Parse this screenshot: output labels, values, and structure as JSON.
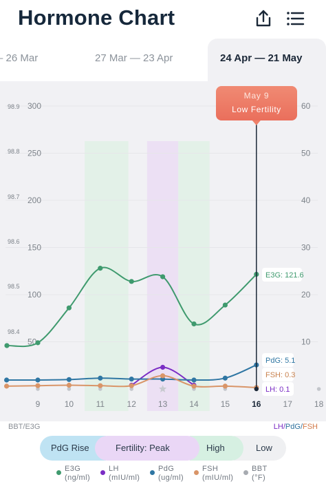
{
  "header": {
    "title": "Hormone Chart",
    "share_icon": "share-icon",
    "menu_icon": "list-menu-icon"
  },
  "tabs": [
    {
      "label": "– 26 Mar",
      "active": false
    },
    {
      "label": "27 Mar — 23 Apr",
      "active": false
    },
    {
      "label": "24 Apr — 21 May",
      "active": true
    }
  ],
  "tooltip": {
    "date": "May 9",
    "status": "Low Fertility"
  },
  "axis_captions": {
    "left": "BBT/E3G",
    "right_1": "LH",
    "sep_1": "/",
    "right_2": "PdG",
    "sep_2": "/",
    "right_3": "FSH"
  },
  "phases": [
    "PdG Rise",
    "Fertility: Peak",
    "High",
    "Low"
  ],
  "legend": [
    {
      "name": "E3G",
      "unit": "(ng/ml)",
      "color": "#3f9a6e"
    },
    {
      "name": "LH",
      "unit": "(mIU/ml)",
      "color": "#7a2cc4"
    },
    {
      "name": "PdG",
      "unit": "(ug/ml)",
      "color": "#2f76a3"
    },
    {
      "name": "FSH",
      "unit": "(mIU/ml)",
      "color": "#d99568"
    },
    {
      "name": "BBT",
      "unit": "(°F)",
      "color": "#a7abb1"
    }
  ],
  "chart_data": {
    "type": "line",
    "x": [
      8,
      9,
      10,
      11,
      12,
      13,
      14,
      15,
      16
    ],
    "x_ticks": [
      "9",
      "10",
      "11",
      "12",
      "13",
      "14",
      "15",
      "16",
      "17",
      "18"
    ],
    "highlight_x": "16",
    "y_left_bbt_ticks": [
      "98.4",
      "98.5",
      "98.6",
      "98.7",
      "98.8",
      "98.9"
    ],
    "y_left_e3g_ticks": [
      "50",
      "100",
      "150",
      "200",
      "250",
      "300"
    ],
    "y_right_ticks": [
      "10",
      "20",
      "30",
      "40",
      "50",
      "60"
    ],
    "ylim_e3g": [
      0,
      300
    ],
    "ylim_right": [
      0,
      60
    ],
    "series": [
      {
        "name": "E3G",
        "axis": "left",
        "color": "#3f9a6e",
        "x": [
          8.2,
          9,
          10,
          11,
          12,
          13,
          14,
          15,
          16
        ],
        "values": [
          46,
          49,
          86,
          128,
          114,
          119,
          69,
          89,
          121.6
        ]
      },
      {
        "name": "LH",
        "axis": "right",
        "color": "#7a2cc4",
        "x": [
          12,
          13,
          14
        ],
        "values": [
          0.8,
          4.6,
          0.8
        ]
      },
      {
        "name": "PdG",
        "axis": "right",
        "color": "#2f76a3",
        "x": [
          8,
          9,
          10,
          11,
          12,
          13,
          14,
          15,
          16
        ],
        "values": [
          1.9,
          1.9,
          2.0,
          2.3,
          2.1,
          2.1,
          1.9,
          2.3,
          5.1
        ]
      },
      {
        "name": "FSH",
        "axis": "right",
        "color": "#d99568",
        "x": [
          8,
          9,
          10,
          11,
          12,
          13,
          14,
          15,
          16
        ],
        "values": [
          0.6,
          0.7,
          0.8,
          0.7,
          0.7,
          2.8,
          0.6,
          0.6,
          0.3
        ]
      }
    ],
    "value_labels": [
      {
        "series": "E3G",
        "text": "E3G: 121.6",
        "color": "#3f9a6e"
      },
      {
        "series": "PdG",
        "text": "PdG: 5.1",
        "color": "#2f76a3"
      },
      {
        "series": "FSH",
        "text": "FSH: 0.3",
        "color": "#c8824e"
      },
      {
        "series": "LH",
        "text": "LH: 0.1",
        "color": "#7a2cc4"
      }
    ],
    "bands": [
      {
        "from": 10.5,
        "to": 11.9,
        "color": "#e3f1e8"
      },
      {
        "from": 12.5,
        "to": 13.5,
        "color": "#ece0f4"
      },
      {
        "from": 13.5,
        "to": 14.5,
        "color": "#e3f1e8"
      }
    ],
    "peak_marker_x": 13
  }
}
